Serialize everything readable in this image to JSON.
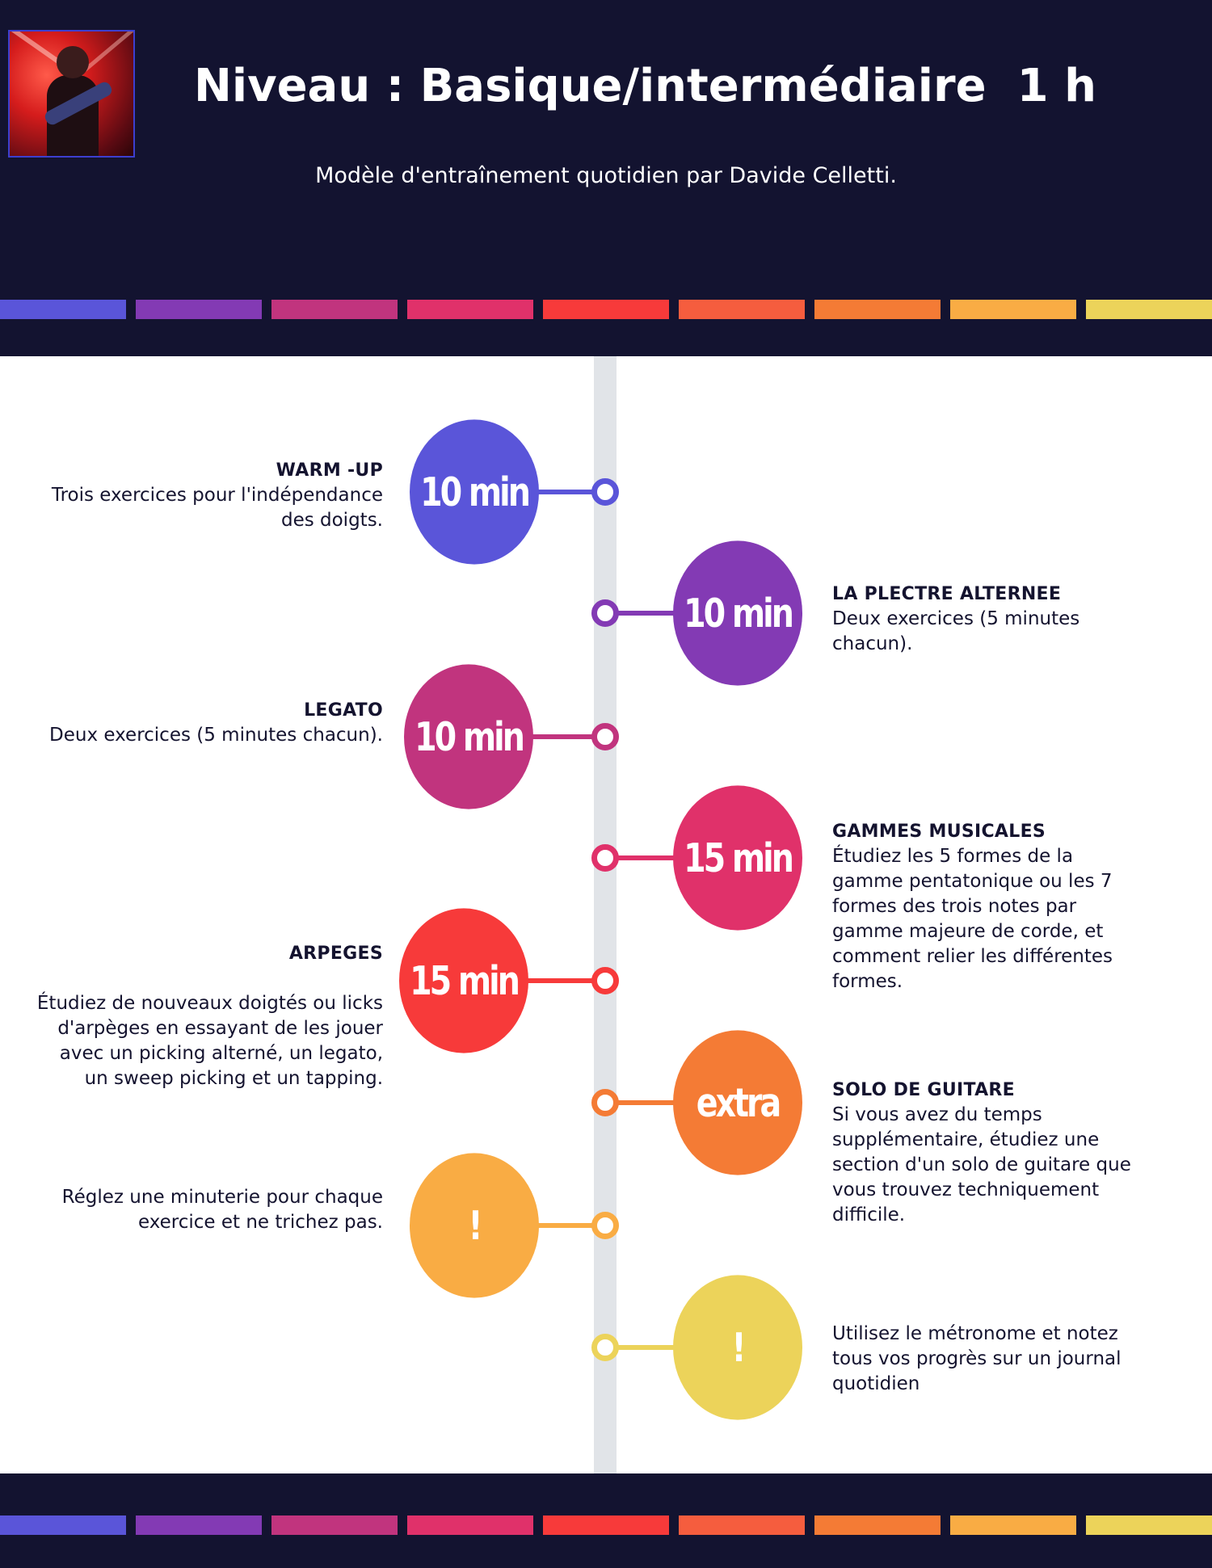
{
  "header": {
    "title": "Niveau : Basique/intermédiaire",
    "duration": "1 h",
    "subtitle": "Modèle d'entraînement quotidien par Davide Celletti."
  },
  "stripe_colors": [
    "#5a55d9",
    "#833ab4",
    "#c1347e",
    "#e0316a",
    "#f73a3a",
    "#f55d3e",
    "#f47b35",
    "#f9ac44",
    "#ecd35a"
  ],
  "timeline": [
    {
      "badge": "10 min",
      "heading": "WARM -UP",
      "text": "Trois exercices pour l'indépendance des doigts.",
      "color": "#5a55d9",
      "side": "left"
    },
    {
      "badge": "10 min",
      "heading": "LA PLECTRE ALTERNEE",
      "text": "Deux exercices (5 minutes chacun).",
      "color": "#833ab4",
      "side": "right"
    },
    {
      "badge": "10 min",
      "heading": "LEGATO",
      "text": "Deux exercices (5 minutes chacun).",
      "color": "#c1347e",
      "side": "left"
    },
    {
      "badge": "15 min",
      "heading": "GAMMES MUSICALES",
      "text": "Étudiez les 5 formes de la gamme pentatonique ou les 7 formes des trois notes par gamme majeure de corde, et comment relier les différentes formes.",
      "color": "#e0316a",
      "side": "right"
    },
    {
      "badge": "15 min",
      "heading": "ARPEGES",
      "text": "Étudiez de nouveaux doigtés ou licks d'arpèges en essayant de les jouer avec un picking alterné, un legato, un sweep picking et un tapping.",
      "color": "#f73a3a",
      "side": "left"
    },
    {
      "badge": "extra",
      "heading": "SOLO DE GUITARE",
      "text": "Si vous avez du temps supplémentaire, étudiez une section d'un solo de guitare que vous trouvez techniquement difficile.",
      "color": "#f47b35",
      "side": "right"
    },
    {
      "badge": "!",
      "heading": "",
      "text": "Réglez une minuterie pour chaque exercice et ne trichez pas.",
      "color": "#f9ac44",
      "side": "left"
    },
    {
      "badge": "!",
      "heading": "",
      "text": "Utilisez le métronome et notez tous vos progrès sur un journal quotidien",
      "color": "#ecd35a",
      "side": "right"
    }
  ]
}
